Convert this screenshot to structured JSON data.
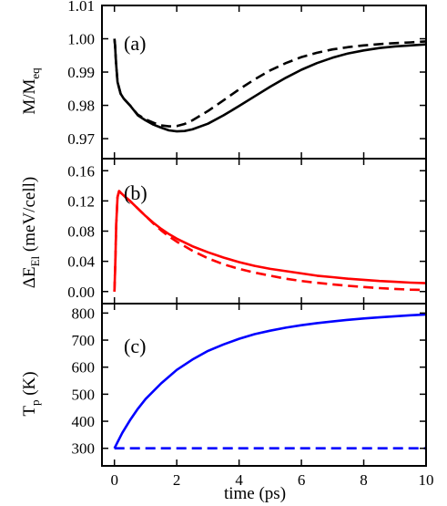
{
  "chart_data": [
    {
      "type": "line",
      "panel_label": "(a)",
      "ylabel": "M/M",
      "ylabel_sub": "eq",
      "xlim": [
        -0.4,
        10
      ],
      "ylim": [
        0.964,
        1.01
      ],
      "yticks": [
        0.97,
        0.98,
        0.99,
        1.0,
        1.01
      ],
      "ytick_labels": [
        "0.97",
        "0.98",
        "0.99",
        "1.00",
        "1.01"
      ],
      "series": [
        {
          "style": "solid",
          "color": "#000000",
          "x": [
            0,
            0.02,
            0.05,
            0.1,
            0.2,
            0.3,
            0.5,
            0.75,
            1.0,
            1.25,
            1.5,
            1.75,
            2.0,
            2.25,
            2.5,
            3.0,
            3.5,
            4.0,
            4.5,
            5.0,
            5.5,
            6.0,
            6.5,
            7.0,
            7.5,
            8.0,
            8.5,
            9.0,
            9.5,
            10.0
          ],
          "y": [
            1.0,
            0.998,
            0.993,
            0.987,
            0.9835,
            0.982,
            0.98,
            0.977,
            0.9755,
            0.9742,
            0.9733,
            0.9725,
            0.9722,
            0.9723,
            0.9728,
            0.9745,
            0.977,
            0.9798,
            0.9827,
            0.9856,
            0.9883,
            0.9907,
            0.9927,
            0.9943,
            0.9956,
            0.9965,
            0.9972,
            0.9977,
            0.998,
            0.9983
          ]
        },
        {
          "style": "dashed",
          "color": "#000000",
          "x": [
            0,
            0.02,
            0.05,
            0.1,
            0.2,
            0.3,
            0.5,
            0.75,
            1.0,
            1.25,
            1.5,
            1.75,
            2.0,
            2.25,
            2.5,
            3.0,
            3.5,
            4.0,
            4.5,
            5.0,
            5.5,
            6.0,
            6.5,
            7.0,
            7.5,
            8.0,
            8.5,
            9.0,
            9.5,
            10.0
          ],
          "y": [
            1.0,
            0.998,
            0.993,
            0.987,
            0.9835,
            0.982,
            0.98,
            0.9772,
            0.9758,
            0.9748,
            0.974,
            0.9737,
            0.9738,
            0.9744,
            0.9755,
            0.9783,
            0.9815,
            0.9848,
            0.9878,
            0.9905,
            0.9927,
            0.9945,
            0.9958,
            0.9968,
            0.9975,
            0.998,
            0.9984,
            0.9987,
            0.9989,
            0.9992
          ]
        }
      ]
    },
    {
      "type": "line",
      "panel_label": "(b)",
      "ylabel": "ΔE",
      "ylabel_sub": "El",
      "ylabel_tail": " (meV/cell)",
      "xlim": [
        -0.4,
        10
      ],
      "ylim": [
        -0.016,
        0.176
      ],
      "yticks": [
        0.0,
        0.04,
        0.08,
        0.12,
        0.16
      ],
      "ytick_labels": [
        "0.00",
        "0.04",
        "0.08",
        "0.12",
        "0.16"
      ],
      "series": [
        {
          "style": "solid",
          "color": "#ff0000",
          "x": [
            0,
            0.03,
            0.06,
            0.1,
            0.15,
            0.2,
            0.3,
            0.5,
            0.75,
            1.0,
            1.25,
            1.5,
            1.75,
            2.0,
            2.5,
            3.0,
            3.5,
            4.0,
            4.5,
            5.0,
            5.5,
            6.0,
            6.5,
            7.0,
            7.5,
            8.0,
            8.5,
            9.0,
            9.5,
            10.0
          ],
          "y": [
            0,
            0.04,
            0.09,
            0.125,
            0.133,
            0.131,
            0.127,
            0.12,
            0.11,
            0.1,
            0.091,
            0.083,
            0.076,
            0.07,
            0.06,
            0.052,
            0.045,
            0.039,
            0.034,
            0.03,
            0.027,
            0.024,
            0.021,
            0.019,
            0.017,
            0.0155,
            0.014,
            0.0128,
            0.0118,
            0.011
          ]
        },
        {
          "style": "dashed",
          "color": "#ff0000",
          "x": [
            0,
            0.03,
            0.06,
            0.1,
            0.15,
            0.2,
            0.3,
            0.5,
            0.75,
            1.0,
            1.25,
            1.5,
            1.75,
            2.0,
            2.5,
            3.0,
            3.5,
            4.0,
            4.5,
            5.0,
            5.5,
            6.0,
            6.5,
            7.0,
            7.5,
            8.0,
            8.5,
            9.0,
            9.5,
            10.0
          ],
          "y": [
            0,
            0.04,
            0.09,
            0.125,
            0.133,
            0.131,
            0.127,
            0.12,
            0.11,
            0.1,
            0.09,
            0.081,
            0.073,
            0.066,
            0.054,
            0.044,
            0.036,
            0.03,
            0.025,
            0.021,
            0.017,
            0.014,
            0.0115,
            0.0095,
            0.0075,
            0.006,
            0.0045,
            0.0035,
            0.0025,
            0.002
          ]
        }
      ]
    },
    {
      "type": "line",
      "panel_label": "(c)",
      "ylabel": "T",
      "ylabel_sub": "p",
      "ylabel_tail": " (K)",
      "xlabel": "time (ps)",
      "xlim": [
        -0.4,
        10
      ],
      "ylim": [
        235,
        835
      ],
      "yticks": [
        300,
        400,
        500,
        600,
        700,
        800
      ],
      "ytick_labels": [
        "300",
        "400",
        "500",
        "600",
        "700",
        "800"
      ],
      "xticks": [
        0,
        2,
        4,
        6,
        8,
        10
      ],
      "xtick_labels": [
        "0",
        "2",
        "4",
        "6",
        "8",
        "10"
      ],
      "series": [
        {
          "style": "solid",
          "color": "#0000ff",
          "x": [
            0,
            0.25,
            0.5,
            0.75,
            1.0,
            1.5,
            2.0,
            2.5,
            3.0,
            3.5,
            4.0,
            4.5,
            5.0,
            5.5,
            6.0,
            6.5,
            7.0,
            7.5,
            8.0,
            8.5,
            9.0,
            9.5,
            10.0
          ],
          "y": [
            300,
            357,
            404,
            446,
            482,
            540,
            590,
            628,
            660,
            684,
            705,
            722,
            735,
            746,
            755,
            763,
            769,
            775,
            780,
            784,
            788,
            792,
            795
          ]
        },
        {
          "style": "dashed",
          "color": "#0000ff",
          "x": [
            0,
            10
          ],
          "y": [
            300,
            300
          ]
        }
      ]
    }
  ]
}
